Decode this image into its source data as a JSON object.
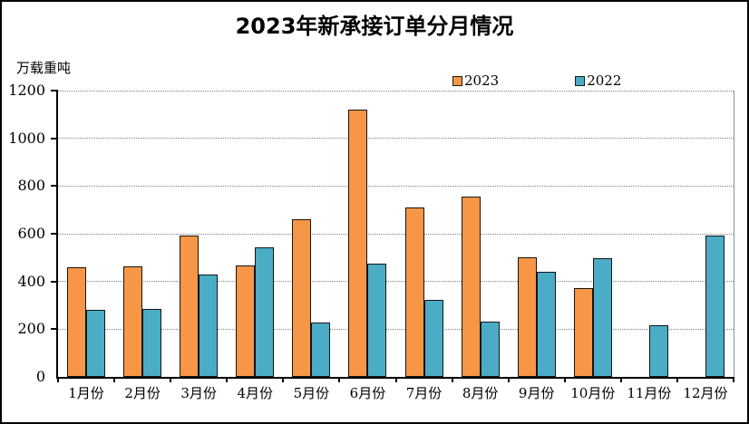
{
  "chart_data": {
    "type": "bar",
    "title": "2023年新承接订单分月情况",
    "y_unit_label": "万载重吨",
    "categories": [
      "1月份",
      "2月份",
      "3月份",
      "4月份",
      "5月份",
      "6月份",
      "7月份",
      "8月份",
      "9月份",
      "10月份",
      "11月份",
      "12月份"
    ],
    "series": [
      {
        "name": "2023",
        "color": "#F79646",
        "values": [
          460,
          464,
          594,
          467,
          660,
          1122,
          709,
          754,
          502,
          372,
          null,
          null
        ]
      },
      {
        "name": "2022",
        "color": "#4BACC6",
        "values": [
          280,
          284,
          429,
          543,
          228,
          476,
          324,
          232,
          439,
          496,
          218,
          592
        ]
      }
    ],
    "ylim": [
      0,
      1200
    ],
    "yticks": [
      0,
      200,
      400,
      600,
      800,
      1000,
      1200
    ],
    "grid": "horizontal-dotted",
    "gridline_color": "#808080",
    "axis_color": "#000000",
    "bar_border_color": "#141414",
    "legend_position": "top-center-inside"
  }
}
